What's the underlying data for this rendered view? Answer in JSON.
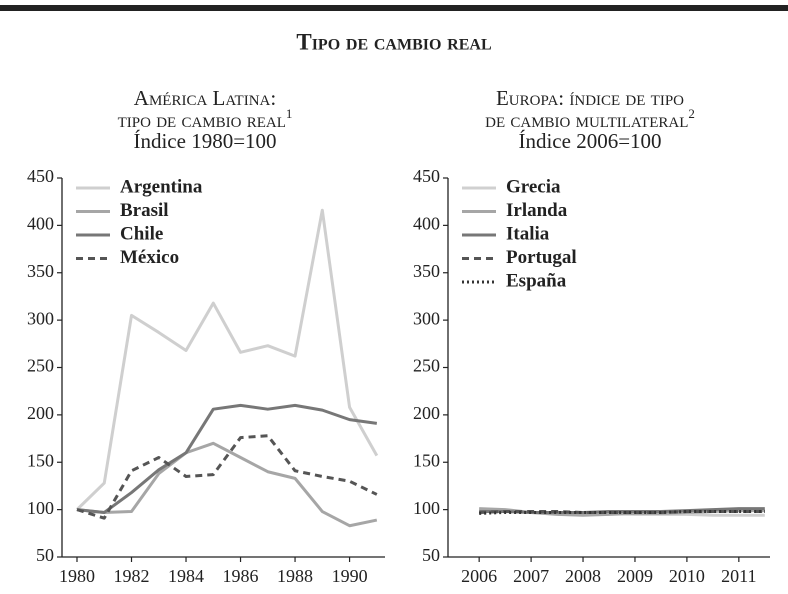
{
  "title": "Tipo de cambio real",
  "chart_data": [
    {
      "type": "line",
      "title_lines": [
        "América Latina:",
        "tipo de cambio real"
      ],
      "title_note": "1",
      "subtitle": "Índice 1980=100",
      "x": [
        1980,
        1981,
        1982,
        1983,
        1984,
        1985,
        1986,
        1987,
        1988,
        1989,
        1990,
        1991
      ],
      "xlim": [
        1979.45,
        1991.3
      ],
      "xticks": [
        1980,
        1982,
        1984,
        1986,
        1988,
        1990
      ],
      "ylim": [
        50,
        450
      ],
      "yticks": [
        50,
        100,
        150,
        200,
        250,
        300,
        350,
        400,
        450
      ],
      "legend": "upper left",
      "series": [
        {
          "name": "Argentina",
          "color": "#cfcfcf",
          "dash": "solid",
          "values": [
            100,
            128,
            305,
            287,
            268,
            318,
            266,
            273,
            262,
            416,
            208,
            157
          ]
        },
        {
          "name": "Brasil",
          "color": "#a6a6a6",
          "dash": "solid",
          "values": [
            100,
            97,
            98,
            138,
            160,
            170,
            155,
            140,
            133,
            98,
            83,
            89
          ]
        },
        {
          "name": "Chile",
          "color": "#777777",
          "dash": "solid",
          "values": [
            100,
            97,
            118,
            142,
            160,
            206,
            210,
            206,
            210,
            205,
            195,
            191
          ]
        },
        {
          "name": "México",
          "color": "#555555",
          "dash": "dashed",
          "values": [
            100,
            91,
            141,
            155,
            135,
            137,
            176,
            178,
            141,
            135,
            130,
            116
          ]
        }
      ]
    },
    {
      "type": "line",
      "title_lines": [
        "Europa: índice de tipo",
        "de cambio multilateral"
      ],
      "title_note": "2",
      "subtitle": "Índice 2006=100",
      "x": [
        2006,
        2006.5,
        2007,
        2007.5,
        2008,
        2008.5,
        2009,
        2009.5,
        2010,
        2010.5,
        2011,
        2011.5
      ],
      "xlim": [
        2005.4,
        2011.6
      ],
      "xticks": [
        2006,
        2007,
        2008,
        2009,
        2010,
        2011
      ],
      "ylim": [
        50,
        450
      ],
      "yticks": [
        50,
        100,
        150,
        200,
        250,
        300,
        350,
        400,
        450
      ],
      "legend": "upper left",
      "series": [
        {
          "name": "Grecia",
          "color": "#d0d0d0",
          "dash": "solid",
          "values": [
            100,
            99,
            97,
            96,
            96,
            96,
            95,
            95,
            95,
            94,
            94,
            94
          ]
        },
        {
          "name": "Irlanda",
          "color": "#a6a6a6",
          "dash": "solid",
          "values": [
            101,
            100,
            97,
            95,
            94,
            95,
            96,
            96,
            97,
            98,
            99,
            99
          ]
        },
        {
          "name": "Italia",
          "color": "#777777",
          "dash": "solid",
          "values": [
            98,
            98,
            97,
            97,
            97,
            98,
            98,
            98,
            99,
            100,
            101,
            101
          ]
        },
        {
          "name": "Portugal",
          "color": "#555555",
          "dash": "dashed",
          "values": [
            97,
            98,
            98,
            98,
            97,
            97,
            97,
            97,
            98,
            98,
            98,
            98
          ]
        },
        {
          "name": "España",
          "color": "#333333",
          "dash": "dotted",
          "values": [
            96,
            97,
            97,
            97,
            97,
            97,
            97,
            97,
            98,
            98,
            98,
            98
          ]
        }
      ]
    }
  ]
}
